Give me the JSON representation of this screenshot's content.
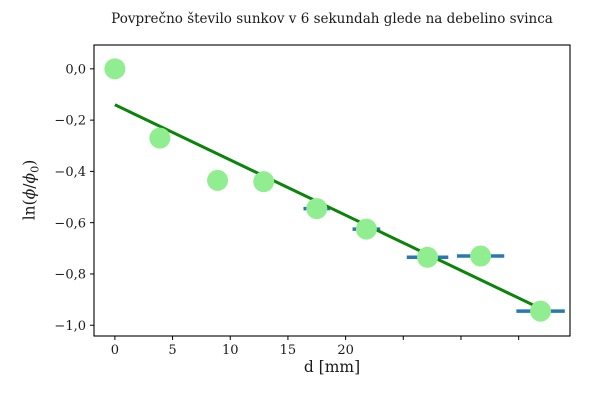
{
  "figure": {
    "background": "#ffffff",
    "text_color": "#1a1a1a"
  },
  "chart_data": {
    "type": "scatter",
    "title": "Povprečno število sunkov v 6 sekundah glede na debelino svinca",
    "xlabel": "d [mm]",
    "ylabel": "ln(ϕ/ϕ₀)",
    "ylabel_parts": {
      "fn": "ln(",
      "phi_a": "ϕ",
      "slash": "/",
      "phi_b": "ϕ",
      "sub_zero": "0",
      "close": ")"
    },
    "xlim": [
      -1.81,
      39.45
    ],
    "ylim": [
      -1.042,
      0.093
    ],
    "grid": false,
    "legend": null,
    "x_ticks": [
      {
        "value": 0,
        "label": "0"
      },
      {
        "value": 5,
        "label": "5"
      },
      {
        "value": 10,
        "label": "10"
      },
      {
        "value": 15,
        "label": "15"
      },
      {
        "value": 20,
        "label": "20"
      },
      {
        "value": 25,
        "label": ""
      },
      {
        "value": 30,
        "label": ""
      },
      {
        "value": 35,
        "label": ""
      }
    ],
    "y_ticks": [
      {
        "value": 0.0,
        "label": "0,0"
      },
      {
        "value": -0.2,
        "label": "−0,2"
      },
      {
        "value": -0.4,
        "label": "−0,4"
      },
      {
        "value": -0.6,
        "label": "−0,6"
      },
      {
        "value": -0.8,
        "label": "−0,8"
      },
      {
        "value": -1.0,
        "label": "−1,0"
      }
    ],
    "series": [
      {
        "name": "measurements",
        "type": "scatter",
        "marker_color": "#90ee90",
        "marker_radius_px": 10.5,
        "error_bar_color": "#2878b4",
        "points": [
          {
            "x": 0,
            "y": 0.0,
            "xerr": null
          },
          {
            "x": 3.9,
            "y": -0.27,
            "xerr": null
          },
          {
            "x": 8.9,
            "y": -0.435,
            "xerr": null
          },
          {
            "x": 12.9,
            "y": -0.44,
            "xerr": null
          },
          {
            "x": 17.5,
            "y": -0.545,
            "xerr": 1.15
          },
          {
            "x": 21.8,
            "y": -0.625,
            "xerr": 1.2
          },
          {
            "x": 27.1,
            "y": -0.735,
            "xerr": 1.8
          },
          {
            "x": 31.7,
            "y": -0.73,
            "xerr": 2.05
          },
          {
            "x": 36.9,
            "y": -0.945,
            "xerr": 2.1
          }
        ]
      },
      {
        "name": "linear-fit",
        "type": "line",
        "color": "#0a840a",
        "x": [
          0,
          36.9
        ],
        "y": [
          -0.14,
          -0.935
        ]
      }
    ],
    "axes_color": "#000000"
  }
}
